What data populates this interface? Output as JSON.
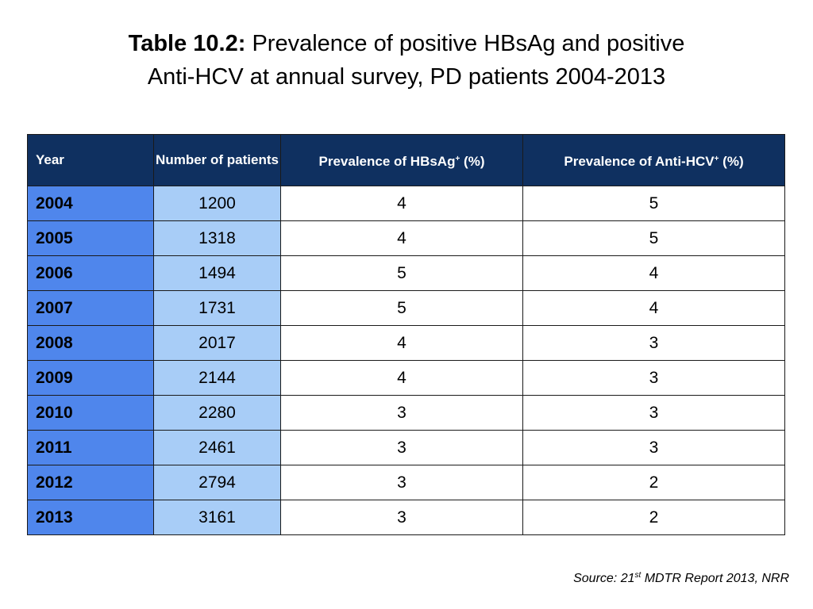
{
  "title": {
    "prefix": "Table 10.2:",
    "line1": "Prevalence of positive HBsAg and positive",
    "line2": "Anti-HCV at annual survey, PD patients 2004-2013"
  },
  "table": {
    "headers": {
      "year": "Year",
      "patients": "Number of patients",
      "hbsag_pre": "Prevalence of HBsAg",
      "hbsag_sup": "+",
      "hbsag_post": " (%)",
      "hcv_pre": "Prevalence of Anti-HCV",
      "hcv_sup": "+",
      "hcv_post": " (%)"
    },
    "rows": [
      {
        "year": "2004",
        "patients": "1200",
        "hbsag": "4",
        "hcv": "5"
      },
      {
        "year": "2005",
        "patients": "1318",
        "hbsag": "4",
        "hcv": "5"
      },
      {
        "year": "2006",
        "patients": "1494",
        "hbsag": "5",
        "hcv": "4"
      },
      {
        "year": "2007",
        "patients": "1731",
        "hbsag": "5",
        "hcv": "4"
      },
      {
        "year": "2008",
        "patients": "2017",
        "hbsag": "4",
        "hcv": "3"
      },
      {
        "year": "2009",
        "patients": "2144",
        "hbsag": "4",
        "hcv": "3"
      },
      {
        "year": "2010",
        "patients": "2280",
        "hbsag": "3",
        "hcv": "3"
      },
      {
        "year": "2011",
        "patients": "2461",
        "hbsag": "3",
        "hcv": "3"
      },
      {
        "year": "2012",
        "patients": "2794",
        "hbsag": "3",
        "hcv": "2"
      },
      {
        "year": "2013",
        "patients": "3161",
        "hbsag": "3",
        "hcv": "2"
      }
    ]
  },
  "source": {
    "pre": "Source: 21",
    "sup": "st",
    "post": " MDTR Report 2013, NRR"
  },
  "colors": {
    "header_bg": "#0f3060",
    "year_bg": "#4f86ec",
    "patients_bg": "#a8cdf7"
  }
}
